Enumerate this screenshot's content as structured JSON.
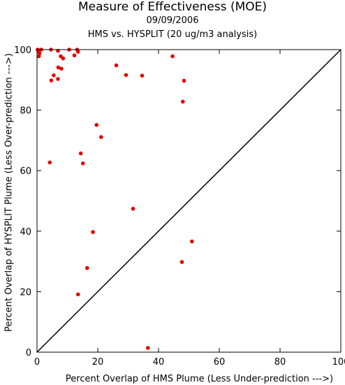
{
  "chart_data": {
    "type": "scatter",
    "title": "Measure of Effectiveness (MOE)",
    "subtitle": "09/09/2006",
    "subtitle2": "HMS vs. HYSPLIT  (20 ug/m3 analysis)",
    "xlabel": "Percent Overlap of HMS Plume (Less Under-prediction --->)",
    "ylabel": "Percent Overlap of HYSPLIT Plume (Less Over-prediction --->)",
    "xlim": [
      0,
      100
    ],
    "ylim": [
      0,
      100
    ],
    "xticks": [
      0,
      20,
      40,
      60,
      80,
      100
    ],
    "yticks": [
      0,
      20,
      40,
      60,
      80,
      100
    ],
    "grid": false,
    "reference_line": "y = x",
    "point_color": "#e60000",
    "points": [
      [
        0.2,
        100
      ],
      [
        0.5,
        99.5
      ],
      [
        0.8,
        98.8
      ],
      [
        0.6,
        97.8
      ],
      [
        1.4,
        100
      ],
      [
        4.6,
        100
      ],
      [
        6.9,
        99.6
      ],
      [
        10.6,
        100
      ],
      [
        13.2,
        100
      ],
      [
        13.5,
        99.3
      ],
      [
        12.3,
        98.1
      ],
      [
        7.8,
        97.8
      ],
      [
        8.6,
        97.1
      ],
      [
        5.5,
        91.5
      ],
      [
        7.0,
        94.1
      ],
      [
        8.0,
        93.7
      ],
      [
        4.7,
        89.8
      ],
      [
        6.9,
        90.3
      ],
      [
        26.1,
        94.8
      ],
      [
        29.3,
        91.6
      ],
      [
        34.6,
        91.4
      ],
      [
        44.6,
        97.8
      ],
      [
        48.4,
        89.7
      ],
      [
        48.0,
        82.8
      ],
      [
        19.6,
        75.1
      ],
      [
        21.1,
        71.1
      ],
      [
        4.2,
        62.7
      ],
      [
        14.4,
        65.7
      ],
      [
        15.1,
        62.4
      ],
      [
        31.6,
        47.4
      ],
      [
        18.4,
        39.7
      ],
      [
        51.0,
        36.6
      ],
      [
        47.7,
        29.8
      ],
      [
        16.5,
        27.8
      ],
      [
        13.5,
        19.1
      ],
      [
        36.5,
        1.4
      ]
    ]
  }
}
